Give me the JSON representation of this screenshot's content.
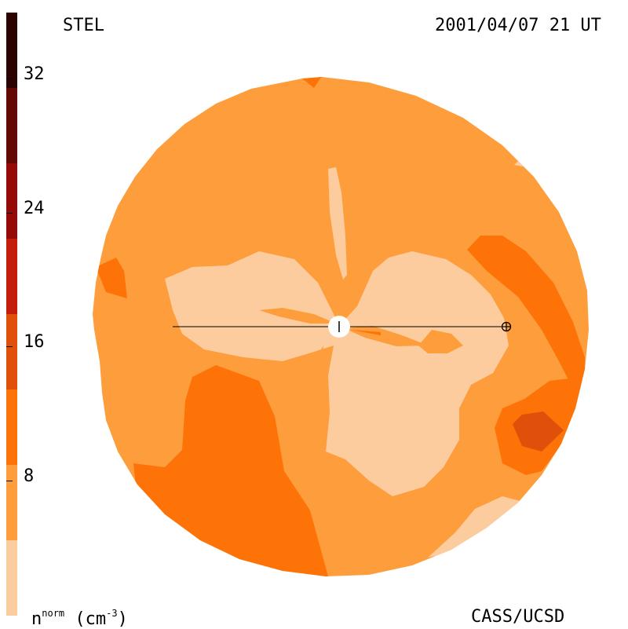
{
  "header": {
    "left_label": "STEL",
    "right_label": "2001/04/07 21 UT"
  },
  "footer": {
    "quantity_base": "n",
    "quantity_sup": "norm",
    "quantity_units_open": "(cm",
    "quantity_units_sup": "-3",
    "quantity_units_close": ")",
    "credit": "CASS/UCSD"
  },
  "colorbar": {
    "ticks": [
      "32",
      "24",
      "16",
      "8"
    ],
    "colors": [
      "#fdcc9e",
      "#fd9d3b",
      "#fd7308",
      "#e0500b",
      "#c41d0c",
      "#930a09",
      "#640805",
      "#2c0300"
    ]
  },
  "map": {
    "background_color": "#fd9d3b",
    "light_color": "#fdcc9e",
    "mid_color": "#fd7308",
    "dark_color": "#e0500b"
  }
}
